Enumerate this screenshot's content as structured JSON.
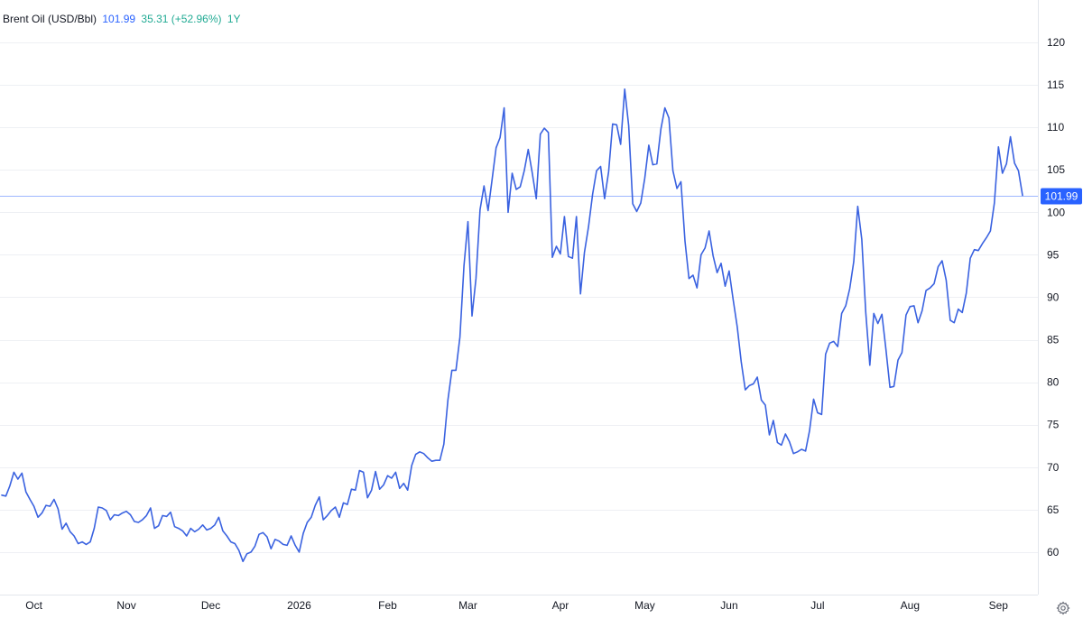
{
  "legend": {
    "symbol": "Brent Oil (USD/Bbl)",
    "last": "101.99",
    "change": "35.31 (+52.96%)",
    "period": "1Y"
  },
  "colors": {
    "line": "#3a62e0",
    "grid": "#eef0f4",
    "axis_text": "#131722",
    "price_tag_bg": "#2962ff",
    "change_text": "#22ab94"
  },
  "settings_icon": "gear-icon",
  "chart_data": {
    "type": "line",
    "title": "",
    "xlabel": "",
    "ylabel": "",
    "ylim": [
      55,
      125
    ],
    "yticks": [
      60,
      65,
      70,
      75,
      80,
      85,
      90,
      95,
      100,
      105,
      110,
      115,
      120
    ],
    "x_ticks": [
      {
        "label": "Oct",
        "index": 8
      },
      {
        "label": "Nov",
        "index": 31
      },
      {
        "label": "Dec",
        "index": 52
      },
      {
        "label": "2026",
        "index": 74
      },
      {
        "label": "Feb",
        "index": 96
      },
      {
        "label": "Mar",
        "index": 116
      },
      {
        "label": "Apr",
        "index": 139
      },
      {
        "label": "May",
        "index": 160
      },
      {
        "label": "Jun",
        "index": 181
      },
      {
        "label": "Jul",
        "index": 203
      },
      {
        "label": "Aug",
        "index": 226
      },
      {
        "label": "Sep",
        "index": 248
      }
    ],
    "last_price_label": "101.99",
    "grid": true,
    "series": [
      {
        "values": [
          66.7,
          66.6,
          67.8,
          69.4,
          68.6,
          69.3,
          67.1,
          66.2,
          65.4,
          64.1,
          64.6,
          65.5,
          65.4,
          66.2,
          65.1,
          62.7,
          63.4,
          62.4,
          61.9,
          61.0,
          61.2,
          60.9,
          61.2,
          62.8,
          65.3,
          65.2,
          64.9,
          63.8,
          64.4,
          64.3,
          64.6,
          64.8,
          64.4,
          63.6,
          63.5,
          63.8,
          64.3,
          65.2,
          62.8,
          63.1,
          64.3,
          64.2,
          64.7,
          63.0,
          62.8,
          62.5,
          61.9,
          62.8,
          62.4,
          62.7,
          63.2,
          62.6,
          62.8,
          63.2,
          64.1,
          62.5,
          61.9,
          61.2,
          61.0,
          60.2,
          58.9,
          59.8,
          60.0,
          60.7,
          62.1,
          62.3,
          61.8,
          60.4,
          61.5,
          61.3,
          60.9,
          60.8,
          61.9,
          60.8,
          60.0,
          62.2,
          63.5,
          64.1,
          65.5,
          66.5,
          63.8,
          64.3,
          64.9,
          65.3,
          64.1,
          65.8,
          65.6,
          67.4,
          67.3,
          69.6,
          69.4,
          66.4,
          67.3,
          69.5,
          67.4,
          67.9,
          69.0,
          68.7,
          69.4,
          67.5,
          68.1,
          67.3,
          70.2,
          71.5,
          71.8,
          71.6,
          71.1,
          70.7,
          70.8,
          70.8,
          72.7,
          77.9,
          81.4,
          81.4,
          85.3,
          93.7,
          98.9,
          87.8,
          92.2,
          100.3,
          103.1,
          100.2,
          103.8,
          107.6,
          108.8,
          112.3,
          100.0,
          104.6,
          102.7,
          103.0,
          104.9,
          107.4,
          104.6,
          101.6,
          109.2,
          109.9,
          109.4,
          94.7,
          96.0,
          95.1,
          99.5,
          94.8,
          94.6,
          99.5,
          90.4,
          95.3,
          98.3,
          102.1,
          104.9,
          105.4,
          101.6,
          104.8,
          110.4,
          110.3,
          108.0,
          114.5,
          110.2,
          101.0,
          100.1,
          101.1,
          104.0,
          107.9,
          105.6,
          105.7,
          109.8,
          112.3,
          111.1,
          104.9,
          102.8,
          103.6,
          96.6,
          92.2,
          92.6,
          91.1,
          95.0,
          95.8,
          97.8,
          94.9,
          92.9,
          94.0,
          91.3,
          93.1,
          89.7,
          86.5,
          82.4,
          79.1,
          79.6,
          79.8,
          80.6,
          77.9,
          77.3,
          73.8,
          75.5,
          72.9,
          72.6,
          73.9,
          73.0,
          71.6,
          71.8,
          72.1,
          71.9,
          74.3,
          78.0,
          76.4,
          76.2,
          83.3,
          84.6,
          84.8,
          84.2,
          88.1,
          89.0,
          91.0,
          94.2,
          100.7,
          96.8,
          88.2,
          82.0,
          88.1,
          86.9,
          88.0,
          83.9,
          79.4,
          79.5,
          82.6,
          83.5,
          87.9,
          88.9,
          89.0,
          87.0,
          88.4,
          90.8,
          91.1,
          91.6,
          93.6,
          94.3,
          92.0,
          87.3,
          87.0,
          88.6,
          88.2,
          90.5,
          94.6,
          95.6,
          95.5,
          96.3,
          97.0,
          97.8,
          101.1,
          107.7,
          104.6,
          105.7,
          108.9,
          105.8,
          104.9,
          101.99
        ]
      }
    ]
  }
}
